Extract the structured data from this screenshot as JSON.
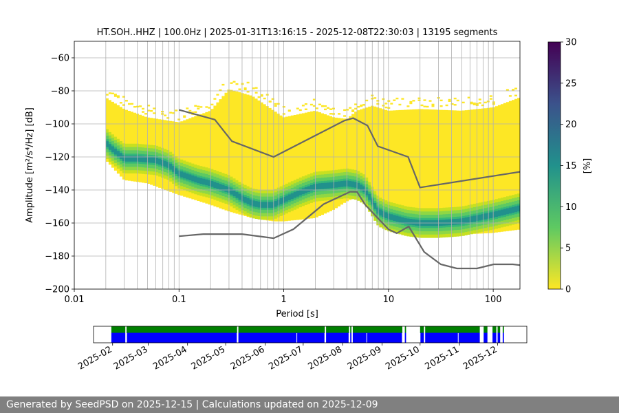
{
  "footer": {
    "text": "Generated by SeedPSD on 2025-12-15 | Calculations updated on 2025-12-09"
  },
  "colors": {
    "viridis": [
      "#fde725",
      "#5ec962",
      "#21918c",
      "#3b528b",
      "#440154"
    ],
    "noise_model": "#666666",
    "availability_data": "#0000ff",
    "availability_gaps": "#008000",
    "grid": "#b0b0b0"
  },
  "chart_data": [
    {
      "type": "heatmap",
      "title": "HT.SOH..HHZ | 100.0Hz | 2025-01-31T13:16:15 - 2025-12-08T22:30:03 | 13195 segments",
      "xlabel": "Period [s]",
      "ylabel": "Amplitude [m²/s⁴/Hz] [dB]",
      "xscale": "log",
      "xlim": [
        0.01,
        180
      ],
      "ylim": [
        -200,
        -50
      ],
      "grid": true,
      "x_ticks": [
        0.01,
        0.1,
        1,
        10,
        100
      ],
      "x_tick_labels": [
        "0.01",
        "0.1",
        "1",
        "10",
        "100"
      ],
      "y_ticks": [
        -200,
        -180,
        -160,
        -140,
        -120,
        -100,
        -80,
        -60
      ],
      "y_tick_labels": [
        "−200",
        "−180",
        "−160",
        "−140",
        "−120",
        "−100",
        "−80",
        "−60"
      ],
      "colorbar": {
        "label": "[%]",
        "range": [
          0,
          30
        ],
        "ticks": [
          0,
          5,
          10,
          15,
          20,
          25,
          30
        ]
      },
      "psd_mode": {
        "period": [
          0.02,
          0.021,
          0.025,
          0.03,
          0.04,
          0.06,
          0.08,
          0.1,
          0.15,
          0.2,
          0.3,
          0.4,
          0.5,
          0.6,
          0.8,
          1,
          1.5,
          2,
          3,
          4,
          5,
          6,
          7,
          8,
          10,
          15,
          20,
          30,
          50,
          100,
          180
        ],
        "db": [
          -111,
          -113,
          -117,
          -121,
          -121,
          -122,
          -125,
          -130,
          -134,
          -136,
          -140,
          -145,
          -148,
          -149,
          -149,
          -146,
          -141,
          -138,
          -137,
          -136,
          -137,
          -140,
          -147,
          -153,
          -156,
          -159,
          -160,
          -160,
          -159,
          -155,
          -151
        ]
      },
      "psd_upper": {
        "period": [
          0.02,
          0.03,
          0.05,
          0.1,
          0.2,
          0.3,
          0.5,
          1,
          2,
          3,
          4,
          5,
          7,
          10,
          20,
          50,
          100,
          180
        ],
        "db": [
          -84,
          -91,
          -96,
          -99,
          -92,
          -79,
          -83,
          -96,
          -92,
          -96,
          -97,
          -92,
          -89,
          -92,
          -91,
          -92,
          -90,
          -84
        ]
      },
      "psd_lower": {
        "period": [
          0.02,
          0.03,
          0.05,
          0.1,
          0.2,
          0.3,
          0.5,
          0.8,
          1,
          2,
          3,
          4,
          5,
          7,
          10,
          20,
          50,
          100,
          180
        ],
        "db": [
          -122,
          -134,
          -136,
          -143,
          -149,
          -153,
          -157,
          -159,
          -159,
          -157,
          -152,
          -147,
          -144,
          -150,
          -159,
          -168,
          -167,
          -166,
          -164
        ]
      },
      "nhnm": {
        "period": [
          0.1,
          0.22,
          0.32,
          0.8,
          3.8,
          4.6,
          6.3,
          7.9,
          15.4,
          20,
          180
        ],
        "db": [
          -91.5,
          -97.4,
          -110.5,
          -120,
          -98,
          -96.5,
          -101,
          -113.5,
          -120,
          -138.5,
          -129
        ]
      },
      "nlnm": {
        "period": [
          0.1,
          0.17,
          0.4,
          0.8,
          1.24,
          2.4,
          4.3,
          5,
          6,
          10,
          12,
          15.6,
          21.9,
          31.6,
          45,
          70,
          101,
          154,
          180
        ],
        "db": [
          -168,
          -166.7,
          -166.7,
          -169.2,
          -163.7,
          -148.6,
          -141.1,
          -141.1,
          -149,
          -163.8,
          -166.2,
          -162.1,
          -177.5,
          -185,
          -187.5,
          -187.5,
          -185,
          -185,
          -185.5
        ]
      }
    },
    {
      "type": "bar",
      "name_hint": "availability",
      "x_tick_labels": [
        "2025-02",
        "2025-03",
        "2025-04",
        "2025-05",
        "2025-06",
        "2025-07",
        "2025-08",
        "2025-09",
        "2025-10",
        "2025-11",
        "2025-12"
      ],
      "x_ticks": [
        "2025-02-01",
        "2025-03-01",
        "2025-04-01",
        "2025-05-01",
        "2025-06-01",
        "2025-07-01",
        "2025-08-01",
        "2025-09-01",
        "2025-10-01",
        "2025-11-01",
        "2025-12-01"
      ],
      "xlim": [
        "2025-01-17",
        "2025-12-24"
      ],
      "data_segments": [
        [
          "2025-01-31",
          "2025-02-11"
        ],
        [
          "2025-02-12",
          "2025-05-10"
        ],
        [
          "2025-05-11",
          "2025-07-18"
        ],
        [
          "2025-07-19",
          "2025-08-06"
        ],
        [
          "2025-08-07",
          "2025-08-08"
        ],
        [
          "2025-08-09",
          "2025-09-17"
        ],
        [
          "2025-09-19",
          "2025-09-20"
        ],
        [
          "2025-10-01",
          "2025-10-04"
        ],
        [
          "2025-10-05",
          "2025-11-17"
        ],
        [
          "2025-11-20",
          "2025-11-23"
        ],
        [
          "2025-11-27",
          "2025-11-30"
        ],
        [
          "2025-12-01",
          "2025-12-03"
        ],
        [
          "2025-12-05",
          "2025-12-06"
        ]
      ],
      "gap_markers": [
        "2025-02-12",
        "2025-05-10",
        "2025-06-26",
        "2025-07-18",
        "2025-08-06",
        "2025-08-20",
        "2025-09-17",
        "2025-10-01",
        "2025-10-31"
      ]
    }
  ]
}
